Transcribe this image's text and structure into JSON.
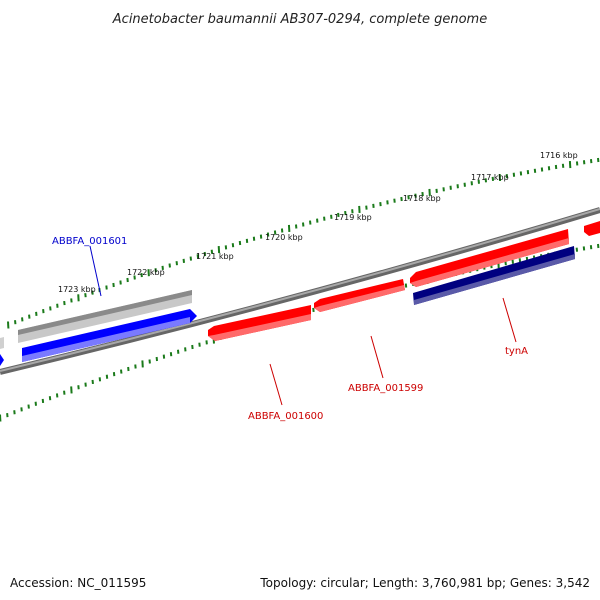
{
  "title": "Acinetobacter baumannii AB307-0294, complete genome",
  "footer": {
    "accession": "Accession: NC_011595",
    "summary": "Topology: circular; Length: 3,760,981 bp; Genes: 3,542"
  },
  "scale": {
    "unit": "kbp",
    "ticks": [
      {
        "label": "1716 kbp"
      },
      {
        "label": "1717 kbp"
      },
      {
        "label": "1718 kbp"
      },
      {
        "label": "1719 kbp"
      },
      {
        "label": "1720 kbp"
      },
      {
        "label": "1721 kbp"
      },
      {
        "label": "1722 kbp"
      },
      {
        "label": "1723 kbp"
      }
    ]
  },
  "genes": [
    {
      "label": "ABBFA_001601",
      "color": "#0000cc"
    },
    {
      "label": "ABBFA_001600",
      "color": "#cc0000"
    },
    {
      "label": "ABBFA_001599",
      "color": "#cc0000"
    },
    {
      "label": "tynA",
      "color": "#cc0000"
    }
  ],
  "colors": {
    "backbone": "#808080",
    "forward_strand": "#ff0000",
    "reverse_strand": "#0000ff",
    "reverse_strand_dark": "#000080",
    "neutral_feature": "#c8c8c8",
    "tick_mark": "#1a7a1a"
  }
}
